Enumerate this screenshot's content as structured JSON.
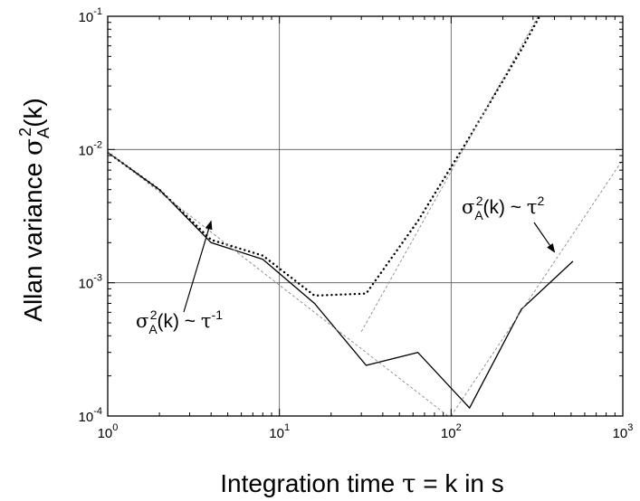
{
  "chart_data": {
    "type": "line",
    "xscale": "log",
    "yscale": "log",
    "xlim": [
      1,
      1000
    ],
    "ylim": [
      0.0001,
      0.1
    ],
    "grid": true,
    "xlabel": {
      "main": "Integration time ",
      "sym": "τ",
      "rest": " = k in s"
    },
    "ylabel": {
      "main": "Allan variance ",
      "sym": "σ",
      "sub": "A",
      "sup": "2",
      "rest": "(k)"
    },
    "x_ticks": [
      {
        "value": 1,
        "base": "10",
        "exp": "0"
      },
      {
        "value": 10,
        "base": "10",
        "exp": "1"
      },
      {
        "value": 100,
        "base": "10",
        "exp": "2"
      },
      {
        "value": 1000,
        "base": "10",
        "exp": "3"
      }
    ],
    "y_ticks": [
      {
        "value": 0.0001,
        "base": "10",
        "exp": "-4"
      },
      {
        "value": 0.001,
        "base": "10",
        "exp": "-3"
      },
      {
        "value": 0.01,
        "base": "10",
        "exp": "-2"
      },
      {
        "value": 0.1,
        "base": "10",
        "exp": "-1"
      }
    ],
    "series": [
      {
        "style": "solid",
        "color": "#000000",
        "points": [
          [
            1,
            0.0095
          ],
          [
            2,
            0.005
          ],
          [
            4,
            0.002
          ],
          [
            8,
            0.0015
          ],
          [
            16,
            0.0007
          ],
          [
            32,
            0.00024
          ],
          [
            64,
            0.0003
          ],
          [
            128,
            0.000115
          ],
          [
            256,
            0.00063
          ],
          [
            512,
            0.00145
          ]
        ]
      },
      {
        "style": "dotted",
        "color": "#000000",
        "points": [
          [
            1,
            0.0095
          ],
          [
            2,
            0.005
          ],
          [
            4,
            0.0021
          ],
          [
            8,
            0.0016
          ],
          [
            16,
            0.0008
          ],
          [
            32,
            0.00083
          ],
          [
            64,
            0.0029
          ],
          [
            128,
            0.0124
          ],
          [
            256,
            0.056
          ],
          [
            400,
            0.16
          ]
        ]
      },
      {
        "style": "dashed-thin",
        "color": "#888888",
        "points": [
          [
            1,
            0.0096
          ],
          [
            100,
            9.6e-05
          ]
        ]
      },
      {
        "style": "dashed-thin",
        "color": "#888888",
        "points": [
          [
            30,
            0.00043
          ],
          [
            360,
            0.13
          ]
        ]
      },
      {
        "style": "dashed-thin",
        "color": "#888888",
        "points": [
          [
            100,
            0.0001
          ],
          [
            1000,
            0.0084
          ]
        ]
      }
    ],
    "annotations": [
      {
        "id": "inverse-fit",
        "prefix": "σ",
        "sub": "A",
        "sup": "2",
        "mid": "(k) ~ ",
        "var": "τ",
        "exp": "-1",
        "arrow_to": [
          4,
          0.0029
        ]
      },
      {
        "id": "quadratic-fit",
        "prefix": "σ",
        "sub": "A",
        "sup": "2",
        "mid": "(k) ~ ",
        "var": "τ",
        "exp": "2",
        "arrow_to": [
          400,
          0.0017
        ]
      }
    ]
  }
}
